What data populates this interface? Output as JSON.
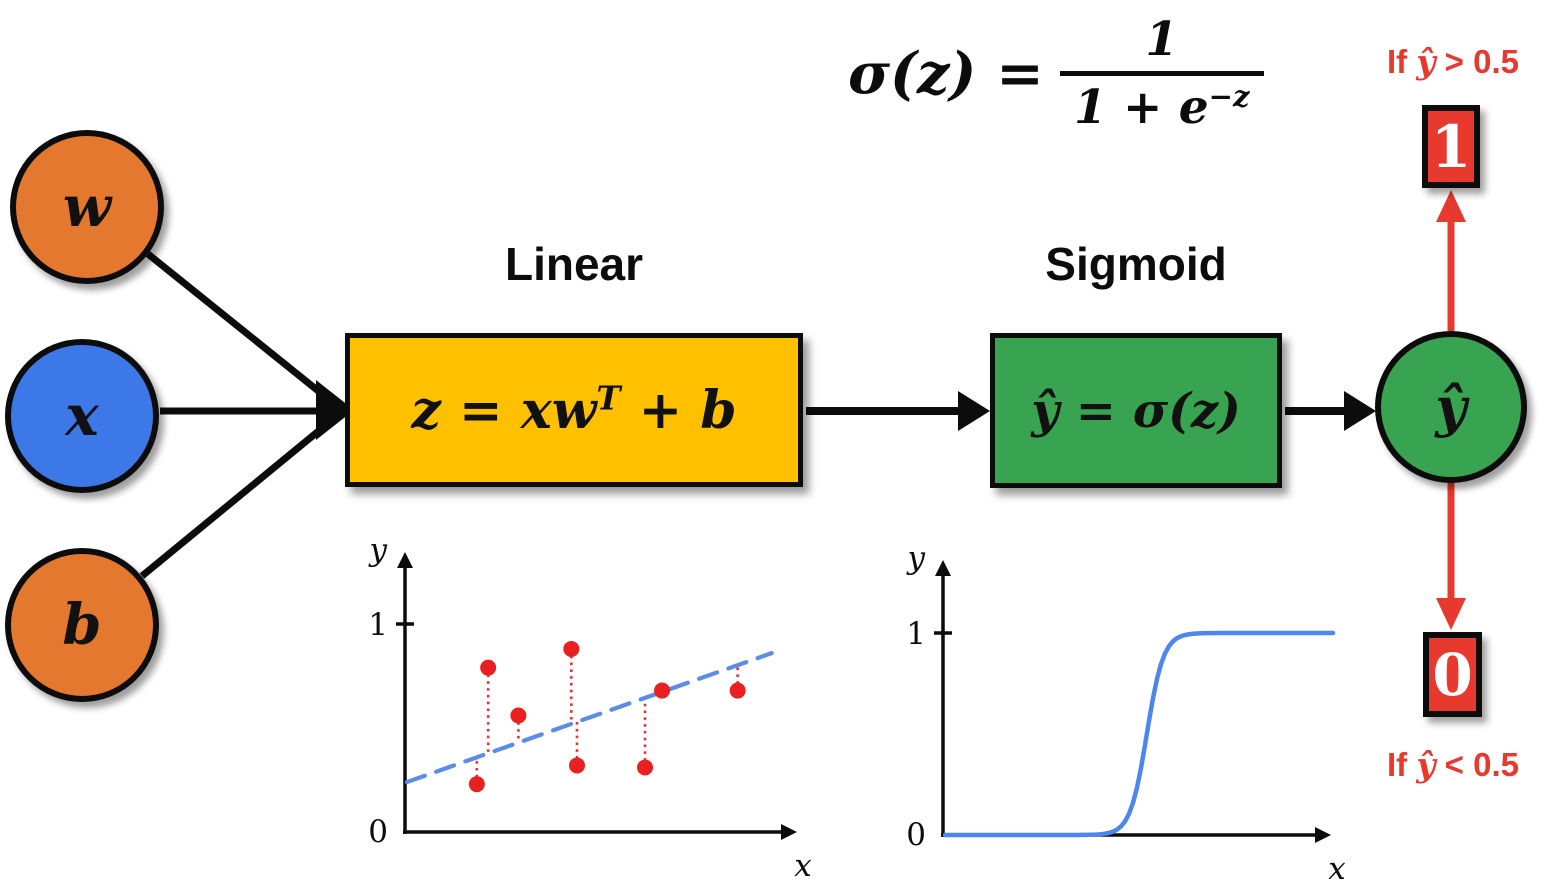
{
  "inputs": [
    {
      "id": "w",
      "label": "w",
      "color": "#E5782F"
    },
    {
      "id": "x",
      "label": "x",
      "color": "#3C78E8"
    },
    {
      "id": "b",
      "label": "b",
      "color": "#E5782F"
    }
  ],
  "linear_stage": {
    "title": "Linear",
    "fill": "#FFC000",
    "formula": {
      "base1": "z = xw",
      "sup": "T",
      "base2": " + b"
    }
  },
  "sigmoid_stage": {
    "title": "Sigmoid",
    "fill": "#38A452",
    "formula": "ŷ = σ(z)"
  },
  "sigma_formula": {
    "lhs": "σ(z) =",
    "numerator": "1",
    "denominator": {
      "base": "1 + e",
      "sup": "−z"
    }
  },
  "output_node": {
    "label": "ŷ",
    "fill": "#38A452"
  },
  "decisions": {
    "accent": "#E8392E",
    "positive": {
      "condition": {
        "prefix": "If ",
        "variable": "ŷ",
        "comparison": " > 0.5"
      },
      "output": "1"
    },
    "negative": {
      "condition": {
        "prefix": "If ",
        "variable": "ŷ",
        "comparison": " < 0.5"
      },
      "output": "0"
    }
  },
  "chart_data": [
    {
      "id": "linear-residuals",
      "type": "scatter",
      "title": "",
      "xlabel": "x",
      "ylabel": "y",
      "yticks": [
        "0",
        "1"
      ],
      "xlim": [
        0,
        1
      ],
      "ylim": [
        0,
        1
      ],
      "grid": false,
      "point_color": "#E82020",
      "line_color": "#5B8DE8",
      "residual_color": "#E83030",
      "points": [
        {
          "x": 0.19,
          "y": 0.23
        },
        {
          "x": 0.22,
          "y": 0.79
        },
        {
          "x": 0.3,
          "y": 0.56
        },
        {
          "x": 0.44,
          "y": 0.88
        },
        {
          "x": 0.455,
          "y": 0.32
        },
        {
          "x": 0.635,
          "y": 0.31
        },
        {
          "x": 0.68,
          "y": 0.68
        },
        {
          "x": 0.88,
          "y": 0.68
        }
      ],
      "fit_line": {
        "style": "dashed",
        "x0": 0.005,
        "y0": 0.24,
        "x1": 0.97,
        "y1": 0.86
      },
      "residuals": true
    },
    {
      "id": "sigmoid-curve",
      "type": "line",
      "title": "",
      "xlabel": "x",
      "ylabel": "y",
      "yticks": [
        "0",
        "1"
      ],
      "xlim": [
        0,
        1
      ],
      "ylim": [
        0,
        1
      ],
      "grid": false,
      "line_color": "#4E86F0",
      "curve": {
        "function": "logistic",
        "midpoint": 0.545,
        "steepness": 45
      }
    }
  ]
}
